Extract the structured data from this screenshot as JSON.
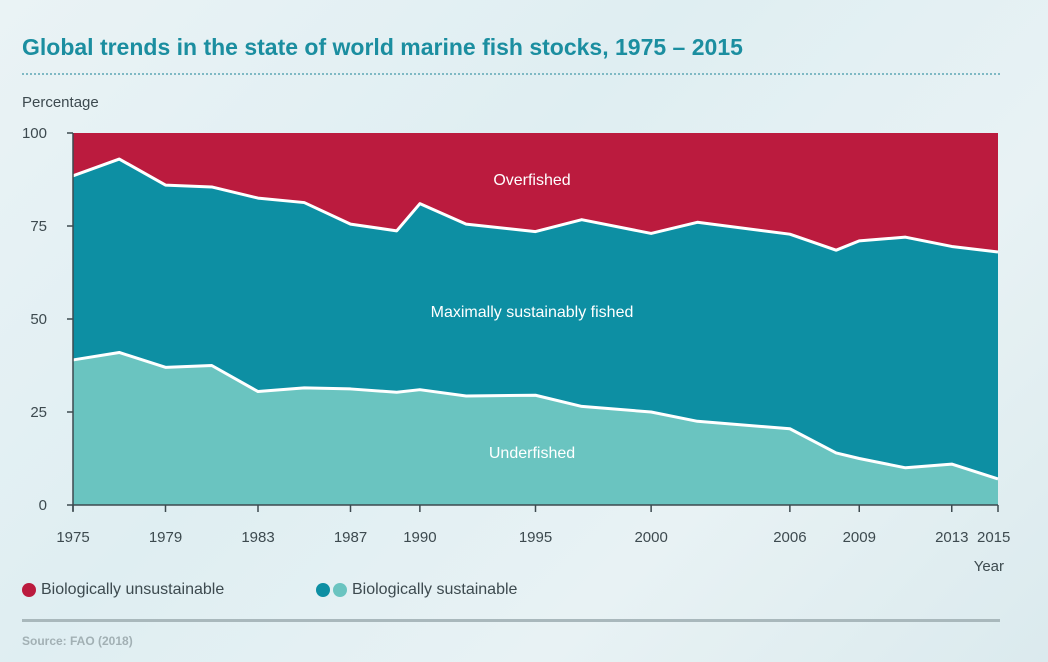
{
  "title": "Global trends in the state of world marine fish stocks, 1975 – 2015",
  "source": "Source: FAO (2018)",
  "chart_data": {
    "type": "area",
    "stacked": true,
    "title": "Global trends in the state of world marine fish stocks, 1975 – 2015",
    "ylabel": "Percentage",
    "xlabel": "Year",
    "ylim": [
      0,
      100
    ],
    "xlim": [
      1975,
      2015
    ],
    "yticks": [
      0,
      25,
      50,
      75,
      100
    ],
    "xticks": [
      1975,
      1979,
      1983,
      1987,
      1990,
      1995,
      2000,
      2006,
      2009,
      2013,
      2015
    ],
    "x": [
      1975,
      1977,
      1979,
      1981,
      1983,
      1985,
      1987,
      1989,
      1990,
      1992,
      1995,
      1997,
      2000,
      2002,
      2006,
      2008,
      2009,
      2011,
      2013,
      2015
    ],
    "series": [
      {
        "name": "Underfished",
        "color": "#6ac4c0",
        "values": [
          39,
          41,
          37,
          37.5,
          30.5,
          31.5,
          31.2,
          30.3,
          31,
          29.3,
          29.5,
          26.5,
          25,
          22.5,
          20.5,
          14,
          12.5,
          10,
          11,
          7
        ]
      },
      {
        "name": "Maximally sustainably fished",
        "color": "#0d8fa3",
        "values": [
          49.5,
          52,
          49,
          48,
          52,
          49.8,
          44.3,
          43.4,
          50,
          46.2,
          44,
          50.2,
          48,
          53.5,
          52.3,
          54.5,
          58.5,
          62,
          58.5,
          61
        ]
      },
      {
        "name": "Overfished",
        "color": "#bb1b3e",
        "values": [
          11.5,
          7,
          14,
          14.5,
          17.5,
          18.7,
          24.5,
          26.3,
          19,
          24.5,
          26.5,
          23.3,
          27,
          24,
          27.2,
          31.5,
          29,
          28,
          30.5,
          32
        ]
      }
    ],
    "legend": [
      {
        "label": "Biologically unsustainable",
        "colors": [
          "#bb1b3e"
        ]
      },
      {
        "label": "Biologically sustainable",
        "colors": [
          "#0d8fa3",
          "#6ac4c0"
        ]
      }
    ],
    "legend_position": "bottom-left",
    "grid": false
  }
}
